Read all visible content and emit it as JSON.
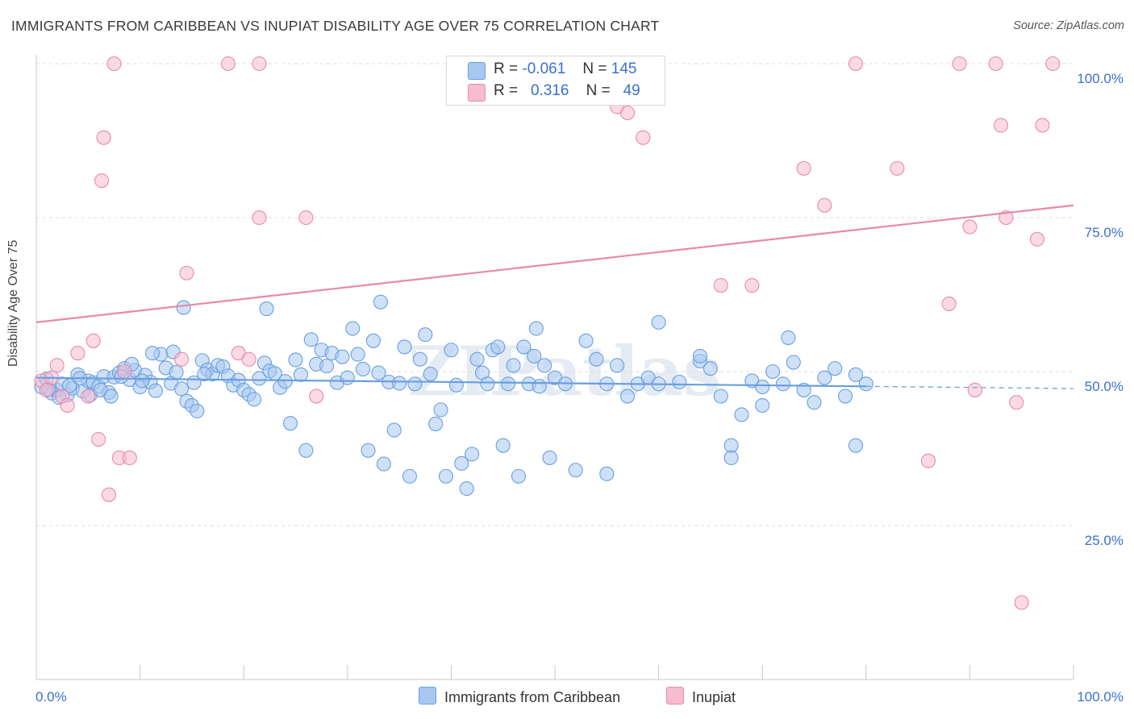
{
  "title": "IMMIGRANTS FROM CARIBBEAN VS INUPIAT DISABILITY AGE OVER 75 CORRELATION CHART",
  "source": "Source: ZipAtlas.com",
  "watermark": "ZIPatlas",
  "legend": {
    "r_label": "R =",
    "n_label": "N =",
    "rows": [
      {
        "r": "-0.061",
        "n": "145",
        "color": "#a8c8f0",
        "border": "#6a9fe0"
      },
      {
        "r": "0.316",
        "n": "49",
        "color": "#f7bcd0",
        "border": "#e889aa"
      }
    ]
  },
  "bottom_legend": [
    {
      "label": "Immigrants from Caribbean",
      "color": "#a8c8f0",
      "border": "#6a9fe0"
    },
    {
      "label": "Inupiat",
      "color": "#f7bcd0",
      "border": "#e889aa"
    }
  ],
  "chart_data": {
    "type": "scatter",
    "title": "IMMIGRANTS FROM CARIBBEAN VS INUPIAT DISABILITY AGE OVER 75 CORRELATION CHART",
    "xlabel": "",
    "ylabel": "Disability Age Over 75",
    "xlim": [
      0,
      100
    ],
    "ylim": [
      0,
      100
    ],
    "x_tick_labels": [
      "0.0%",
      "100.0%"
    ],
    "y_ticks": [
      25,
      50,
      75,
      100
    ],
    "y_tick_labels": [
      "25.0%",
      "50.0%",
      "75.0%",
      "100.0%"
    ],
    "grid": true,
    "series": [
      {
        "name": "Immigrants from Caribbean",
        "color": "#6a9fe0",
        "fill": "#a8c8f0",
        "trend": {
          "x": [
            0,
            80
          ],
          "y": [
            49.0,
            47.6
          ],
          "dashed_to": 100
        },
        "points": [
          [
            0.5,
            47.5
          ],
          [
            1.0,
            48.8
          ],
          [
            1.5,
            46.5
          ],
          [
            2.0,
            47.0
          ],
          [
            2.5,
            48.0
          ],
          [
            3.0,
            46.2
          ],
          [
            3.5,
            47.3
          ],
          [
            4.0,
            49.5
          ],
          [
            4.5,
            46.8
          ],
          [
            5.0,
            48.5
          ],
          [
            5.5,
            48.2
          ],
          [
            6.0,
            47.6
          ],
          [
            6.5,
            49.2
          ],
          [
            7.0,
            46.6
          ],
          [
            7.5,
            49.1
          ],
          [
            8.0,
            49.8
          ],
          [
            8.5,
            50.5
          ],
          [
            9.0,
            48.7
          ],
          [
            9.5,
            50.2
          ],
          [
            10.0,
            47.5
          ],
          [
            10.5,
            49.4
          ],
          [
            11.0,
            48.3
          ],
          [
            11.5,
            46.9
          ],
          [
            12.0,
            52.8
          ],
          [
            12.5,
            50.6
          ],
          [
            13.0,
            48.1
          ],
          [
            13.5,
            49.9
          ],
          [
            14.0,
            47.2
          ],
          [
            14.5,
            45.2
          ],
          [
            15.0,
            44.5
          ],
          [
            15.5,
            43.6
          ],
          [
            16.0,
            51.8
          ],
          [
            16.5,
            50.3
          ],
          [
            17.0,
            49.6
          ],
          [
            17.5,
            51.0
          ],
          [
            18.0,
            50.8
          ],
          [
            18.5,
            49.3
          ],
          [
            19.0,
            47.8
          ],
          [
            19.5,
            48.6
          ],
          [
            20.0,
            47.0
          ],
          [
            20.5,
            46.3
          ],
          [
            21.0,
            45.5
          ],
          [
            21.5,
            48.9
          ],
          [
            22.0,
            51.4
          ],
          [
            22.5,
            50.1
          ],
          [
            23.0,
            49.7
          ],
          [
            23.5,
            47.4
          ],
          [
            24.0,
            48.4
          ],
          [
            24.5,
            41.6
          ],
          [
            25.0,
            51.9
          ],
          [
            25.5,
            49.5
          ],
          [
            26.0,
            37.2
          ],
          [
            26.5,
            55.2
          ],
          [
            27.0,
            51.2
          ],
          [
            27.5,
            53.5
          ],
          [
            28.0,
            50.9
          ],
          [
            28.5,
            53.0
          ],
          [
            29.0,
            48.2
          ],
          [
            29.5,
            52.4
          ],
          [
            30.0,
            49.0
          ],
          [
            30.5,
            57.0
          ],
          [
            31.0,
            52.8
          ],
          [
            31.5,
            50.4
          ],
          [
            32.0,
            37.2
          ],
          [
            32.5,
            55.0
          ],
          [
            33.0,
            49.8
          ],
          [
            33.5,
            35.0
          ],
          [
            34.0,
            48.3
          ],
          [
            34.5,
            40.5
          ],
          [
            35.0,
            48.1
          ],
          [
            35.5,
            54.0
          ],
          [
            36.0,
            33.0
          ],
          [
            36.5,
            48.0
          ],
          [
            37.0,
            52.0
          ],
          [
            37.5,
            56.0
          ],
          [
            38.0,
            49.6
          ],
          [
            38.5,
            41.5
          ],
          [
            39.0,
            43.8
          ],
          [
            39.5,
            33.0
          ],
          [
            40.0,
            53.5
          ],
          [
            40.5,
            47.8
          ],
          [
            41.0,
            35.1
          ],
          [
            41.5,
            31.0
          ],
          [
            42.0,
            36.6
          ],
          [
            42.5,
            52.0
          ],
          [
            43.0,
            49.8
          ],
          [
            43.5,
            48.0
          ],
          [
            44.0,
            53.5
          ],
          [
            44.5,
            54.0
          ],
          [
            45.0,
            38.0
          ],
          [
            45.5,
            48.0
          ],
          [
            46.0,
            51.0
          ],
          [
            46.5,
            33.0
          ],
          [
            47.0,
            54.0
          ],
          [
            47.5,
            48.0
          ],
          [
            48.0,
            52.5
          ],
          [
            48.5,
            47.6
          ],
          [
            49.0,
            51.0
          ],
          [
            49.5,
            36.0
          ],
          [
            50.0,
            49.0
          ],
          [
            51.0,
            48.0
          ],
          [
            52.0,
            34.0
          ],
          [
            53.0,
            55.0
          ],
          [
            54.0,
            52.0
          ],
          [
            55.0,
            48.0
          ],
          [
            56.0,
            51.0
          ],
          [
            57.0,
            46.0
          ],
          [
            58.0,
            48.0
          ],
          [
            59.0,
            49.0
          ],
          [
            60.0,
            48.0
          ],
          [
            62.0,
            48.3
          ],
          [
            64.0,
            51.7
          ],
          [
            65.0,
            50.5
          ],
          [
            66.0,
            46.0
          ],
          [
            67.0,
            38.0
          ],
          [
            68.0,
            43.0
          ],
          [
            69.0,
            48.5
          ],
          [
            70.0,
            44.5
          ],
          [
            71.0,
            50.0
          ],
          [
            72.0,
            48.0
          ],
          [
            73.0,
            51.5
          ],
          [
            74.0,
            47.0
          ],
          [
            75.0,
            45.0
          ],
          [
            76.0,
            49.0
          ],
          [
            77.0,
            50.5
          ],
          [
            78.0,
            46.0
          ],
          [
            79.0,
            49.5
          ],
          [
            80.0,
            48.0
          ],
          [
            1.2,
            47.1
          ],
          [
            2.2,
            45.8
          ],
          [
            3.2,
            47.7
          ],
          [
            4.2,
            48.9
          ],
          [
            5.2,
            46.2
          ],
          [
            6.2,
            47.0
          ],
          [
            7.2,
            46.0
          ],
          [
            8.2,
            49.2
          ],
          [
            9.2,
            51.2
          ],
          [
            10.2,
            48.5
          ],
          [
            11.2,
            53.0
          ],
          [
            13.2,
            53.2
          ],
          [
            14.2,
            60.4
          ],
          [
            15.2,
            48.2
          ],
          [
            16.2,
            49.6
          ],
          [
            22.2,
            60.2
          ],
          [
            33.2,
            61.3
          ],
          [
            48.2,
            57.0
          ],
          [
            60.0,
            58.0
          ],
          [
            64.0,
            52.5
          ],
          [
            70.0,
            47.5
          ],
          [
            72.5,
            55.5
          ],
          [
            79.0,
            38.0
          ],
          [
            67.0,
            36.0
          ],
          [
            55.0,
            33.4
          ]
        ]
      },
      {
        "name": "Inupiat",
        "color": "#e889aa",
        "fill": "#f7bcd0",
        "trend": {
          "x": [
            0,
            100
          ],
          "y": [
            58.0,
            77.0
          ]
        },
        "points": [
          [
            0.5,
            48.5
          ],
          [
            1.0,
            47.0
          ],
          [
            1.5,
            49.0
          ],
          [
            2.0,
            51.0
          ],
          [
            2.5,
            46.0
          ],
          [
            3.0,
            44.5
          ],
          [
            4.0,
            53.0
          ],
          [
            5.0,
            46.0
          ],
          [
            5.5,
            55.0
          ],
          [
            6.0,
            39.0
          ],
          [
            6.3,
            81.0
          ],
          [
            6.5,
            88.0
          ],
          [
            7.0,
            30.0
          ],
          [
            7.5,
            100.0
          ],
          [
            8.0,
            36.0
          ],
          [
            8.5,
            50.0
          ],
          [
            9.0,
            36.0
          ],
          [
            14.0,
            52.0
          ],
          [
            14.5,
            66.0
          ],
          [
            18.5,
            100.0
          ],
          [
            19.5,
            53.0
          ],
          [
            20.5,
            52.0
          ],
          [
            21.5,
            75.0
          ],
          [
            21.5,
            100.0
          ],
          [
            26.0,
            75.0
          ],
          [
            27.0,
            46.0
          ],
          [
            53.0,
            95.0
          ],
          [
            56.0,
            93.0
          ],
          [
            57.0,
            92.0
          ],
          [
            58.5,
            88.0
          ],
          [
            66.0,
            64.0
          ],
          [
            69.0,
            64.0
          ],
          [
            74.0,
            83.0
          ],
          [
            76.0,
            77.0
          ],
          [
            79.0,
            100.0
          ],
          [
            83.0,
            83.0
          ],
          [
            86.0,
            35.5
          ],
          [
            88.0,
            61.0
          ],
          [
            89.0,
            100.0
          ],
          [
            90.0,
            73.5
          ],
          [
            90.5,
            47.0
          ],
          [
            92.5,
            100.0
          ],
          [
            93.0,
            90.0
          ],
          [
            93.5,
            75.0
          ],
          [
            94.5,
            45.0
          ],
          [
            95.0,
            12.5
          ],
          [
            96.5,
            71.5
          ],
          [
            97.0,
            90.0
          ],
          [
            98.0,
            100.0
          ]
        ]
      }
    ]
  }
}
